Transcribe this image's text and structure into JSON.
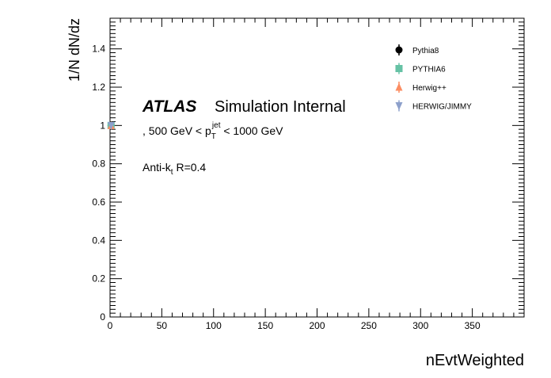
{
  "chart_data": {
    "type": "scatter",
    "ylabel": "1/N dN/dz",
    "xlabel": "nEvtWeighted",
    "xlim": [
      0,
      400
    ],
    "ylim": [
      0,
      1.56
    ],
    "xticks": [
      0,
      50,
      100,
      150,
      200,
      250,
      300,
      350
    ],
    "xtick_labels": [
      "0",
      "50",
      "100",
      "150",
      "200",
      "250",
      "300",
      "350"
    ],
    "yticks": [
      0,
      0.2,
      0.4,
      0.6,
      0.8,
      1.0,
      1.2,
      1.4
    ],
    "ytick_labels": [
      "0",
      "0.2",
      "0.4",
      "0.6",
      "0.8",
      "1",
      "1.2",
      "1.4"
    ],
    "grid": false,
    "legend_position": "top-right",
    "annotations": {
      "atlas": "ATLAS",
      "internal": "Simulation Internal",
      "kin_prefix": ", 500 GeV < p",
      "kin_sub": "T",
      "kin_sup": "jet",
      "kin_suffix": " < 1000 GeV",
      "jet_prefix": "Anti-k",
      "jet_sub": "t",
      "jet_suffix": " R=0.4"
    },
    "series": [
      {
        "name": "Pythia8",
        "color": "#000000",
        "marker": "circle",
        "x": [
          1
        ],
        "y": [
          1.0
        ]
      },
      {
        "name": "PYTHIA6",
        "color": "#66c2a5",
        "marker": "square",
        "x": [
          1
        ],
        "y": [
          1.0
        ]
      },
      {
        "name": "Herwig++",
        "color": "#fc8d62",
        "marker": "triangle-up",
        "x": [
          1
        ],
        "y": [
          1.0
        ]
      },
      {
        "name": "HERWIG/JIMMY",
        "color": "#8da0cb",
        "marker": "triangle-down",
        "x": [
          1
        ],
        "y": [
          1.0
        ]
      }
    ]
  }
}
